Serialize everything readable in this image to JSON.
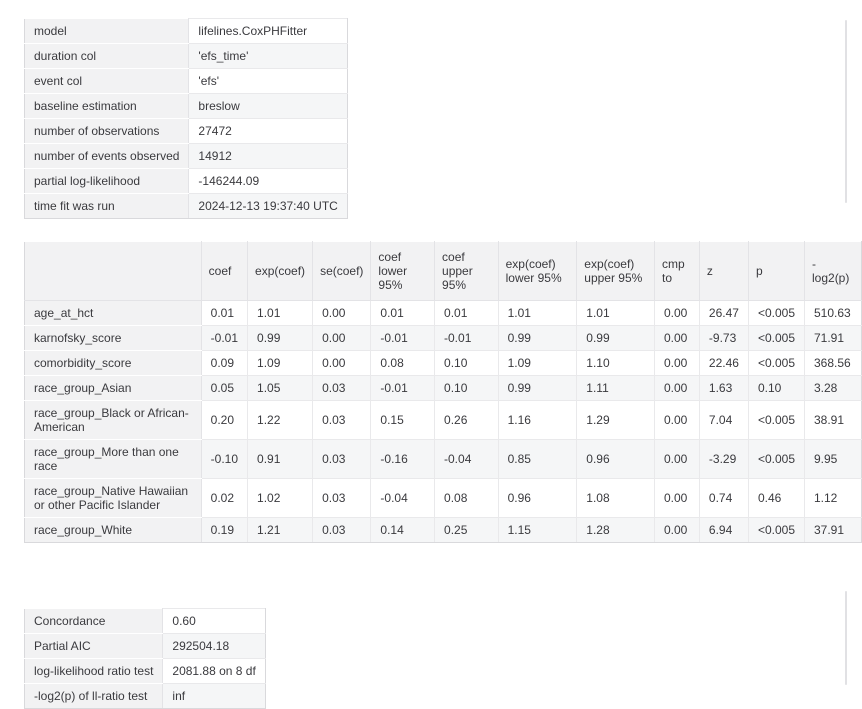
{
  "meta_table": {
    "rows": [
      {
        "label": "model",
        "value": "lifelines.CoxPHFitter"
      },
      {
        "label": "duration col",
        "value": "'efs_time'"
      },
      {
        "label": "event col",
        "value": "'efs'"
      },
      {
        "label": "baseline estimation",
        "value": "breslow"
      },
      {
        "label": "number of observations",
        "value": "27472"
      },
      {
        "label": "number of events observed",
        "value": "14912"
      },
      {
        "label": "partial log-likelihood",
        "value": "-146244.09"
      },
      {
        "label": "time fit was run",
        "value": "2024-12-13 19:37:40 UTC"
      }
    ]
  },
  "coef_table": {
    "columns": [
      "coef",
      "exp(coef)",
      "se(coef)",
      "coef lower 95%",
      "coef upper 95%",
      "exp(coef) lower 95%",
      "exp(coef) upper 95%",
      "cmp to",
      "z",
      "p",
      "-\nlog2(p)"
    ],
    "rows": [
      {
        "label": "age_at_hct",
        "values": [
          "0.01",
          "1.01",
          "0.00",
          "0.01",
          "0.01",
          "1.01",
          "1.01",
          "0.00",
          "26.47",
          "<0.005",
          "510.63"
        ]
      },
      {
        "label": "karnofsky_score",
        "values": [
          "-0.01",
          "0.99",
          "0.00",
          "-0.01",
          "-0.01",
          "0.99",
          "0.99",
          "0.00",
          "-9.73",
          "<0.005",
          "71.91"
        ]
      },
      {
        "label": "comorbidity_score",
        "values": [
          "0.09",
          "1.09",
          "0.00",
          "0.08",
          "0.10",
          "1.09",
          "1.10",
          "0.00",
          "22.46",
          "<0.005",
          "368.56"
        ]
      },
      {
        "label": "race_group_Asian",
        "values": [
          "0.05",
          "1.05",
          "0.03",
          "-0.01",
          "0.10",
          "0.99",
          "1.11",
          "0.00",
          "1.63",
          "0.10",
          "3.28"
        ]
      },
      {
        "label": "race_group_Black or African-American",
        "values": [
          "0.20",
          "1.22",
          "0.03",
          "0.15",
          "0.26",
          "1.16",
          "1.29",
          "0.00",
          "7.04",
          "<0.005",
          "38.91"
        ]
      },
      {
        "label": "race_group_More than one race",
        "values": [
          "-0.10",
          "0.91",
          "0.03",
          "-0.16",
          "-0.04",
          "0.85",
          "0.96",
          "0.00",
          "-3.29",
          "<0.005",
          "9.95"
        ]
      },
      {
        "label": "race_group_Native Hawaiian or other Pacific Islander",
        "values": [
          "0.02",
          "1.02",
          "0.03",
          "-0.04",
          "0.08",
          "0.96",
          "1.08",
          "0.00",
          "0.74",
          "0.46",
          "1.12"
        ]
      },
      {
        "label": "race_group_White",
        "values": [
          "0.19",
          "1.21",
          "0.03",
          "0.14",
          "0.25",
          "1.15",
          "1.28",
          "0.00",
          "6.94",
          "<0.005",
          "37.91"
        ]
      }
    ]
  },
  "stats_table": {
    "rows": [
      {
        "label": "Concordance",
        "value": "0.60"
      },
      {
        "label": "Partial AIC",
        "value": "292504.18"
      },
      {
        "label": "log-likelihood ratio test",
        "value": "2081.88 on 8 df"
      },
      {
        "label": "-log2(p) of ll-ratio test",
        "value": "inf"
      }
    ]
  },
  "colors": {
    "header_cell_bg": "#f2f2f3",
    "alt_row_bg": "#f5f6f7",
    "cell_border": "#e9e9eb",
    "outer_border": "#d9d9dc",
    "text": "#3a3a3e"
  }
}
